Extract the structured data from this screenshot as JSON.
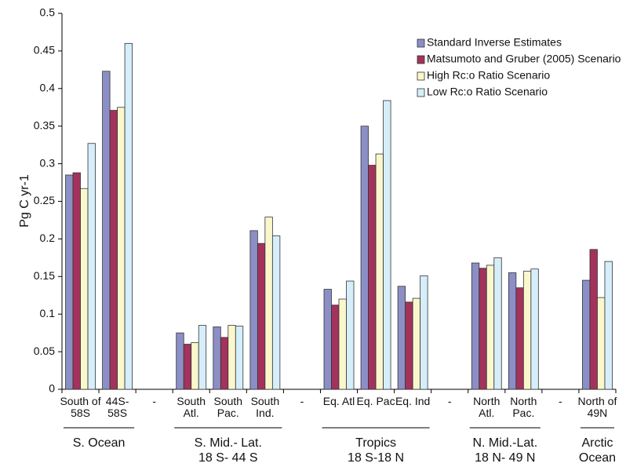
{
  "chart_data": {
    "type": "bar",
    "y_label": "Pg C yr-1",
    "categories": [
      "South of\n58S",
      "44S-\n58S",
      "-",
      "South\nAtl.",
      "South\nPac.",
      "South\nInd.",
      "-",
      "Eq. Atl",
      "Eq. Pac",
      "Eq. Ind",
      "-",
      "North\nAtl.",
      "North\nPac.",
      "-",
      "North of\n49N"
    ],
    "groups": [
      "S. Ocean",
      "S. Mid.- Lat.\n18 S- 44 S",
      "Tropics\n18 S-18 N",
      "N. Mid.-Lat.\n18 N- 49 N",
      "Arctic\nOcean"
    ],
    "series": [
      {
        "name": "Standard Inverse Estimates",
        "color": "#8c8fc6",
        "values": [
          0.285,
          0.423,
          null,
          0.075,
          0.083,
          0.211,
          null,
          0.133,
          0.35,
          0.137,
          null,
          0.168,
          0.155,
          null,
          0.145
        ]
      },
      {
        "name": "Matsumoto and Gruber (2005) Scenario",
        "color": "#a3335c",
        "values": [
          0.288,
          0.371,
          null,
          0.06,
          0.069,
          0.194,
          null,
          0.112,
          0.298,
          0.116,
          null,
          0.161,
          0.135,
          null,
          0.186
        ]
      },
      {
        "name": "High Rc:o Ratio Scenario",
        "color": "#fbf7cc",
        "values": [
          0.267,
          0.375,
          null,
          0.062,
          0.085,
          0.229,
          null,
          0.12,
          0.313,
          0.121,
          null,
          0.165,
          0.157,
          null,
          0.122
        ]
      },
      {
        "name": "Low Rc:o Ratio Scenario",
        "color": "#d6eef9",
        "values": [
          0.327,
          0.46,
          null,
          0.085,
          0.084,
          0.204,
          null,
          0.144,
          0.384,
          0.151,
          null,
          0.175,
          0.16,
          null,
          0.17
        ]
      }
    ],
    "ylim": [
      0,
      0.5
    ],
    "yticks": [
      0,
      0.05,
      0.1,
      0.15,
      0.2,
      0.25,
      0.3,
      0.35,
      0.4,
      0.45,
      0.5
    ],
    "grid": false
  }
}
